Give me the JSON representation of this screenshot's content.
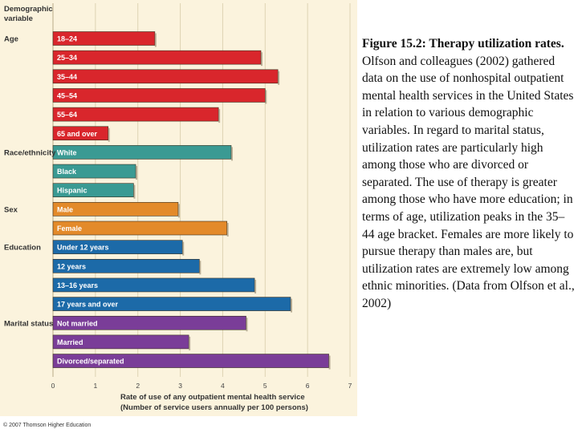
{
  "chart_data": {
    "type": "bar",
    "orientation": "horizontal",
    "group_header": "Demographic variable",
    "xlabel": "Rate of use of any outpatient mental health service",
    "xlabel_sub": "(Number of service users annually per 100 persons)",
    "xlim": [
      0,
      7
    ],
    "xticks": [
      "0",
      "1",
      "2",
      "3",
      "4",
      "5",
      "6",
      "7"
    ],
    "grid": "vertical",
    "legend": "none",
    "groups": [
      {
        "name": "Age",
        "color": "#d9262c",
        "bars": [
          {
            "label": "18–24",
            "value": 2.4
          },
          {
            "label": "25–34",
            "value": 4.9
          },
          {
            "label": "35–44",
            "value": 5.3
          },
          {
            "label": "45–54",
            "value": 5.0
          },
          {
            "label": "55–64",
            "value": 3.9
          },
          {
            "label": "65 and over",
            "value": 1.3
          }
        ]
      },
      {
        "name": "Race/ethnicity",
        "color": "#3a9a93",
        "bars": [
          {
            "label": "White",
            "value": 4.2
          },
          {
            "label": "Black",
            "value": 1.95
          },
          {
            "label": "Hispanic",
            "value": 1.9
          }
        ]
      },
      {
        "name": "Sex",
        "color": "#e38a2a",
        "bars": [
          {
            "label": "Male",
            "value": 2.95
          },
          {
            "label": "Female",
            "value": 4.1
          }
        ]
      },
      {
        "name": "Education",
        "color": "#1c6aa8",
        "bars": [
          {
            "label": "Under 12 years",
            "value": 3.05
          },
          {
            "label": "12 years",
            "value": 3.45
          },
          {
            "label": "13–16 years",
            "value": 4.75
          },
          {
            "label": "17 years and over",
            "value": 5.6
          }
        ]
      },
      {
        "name": "Marital status",
        "color": "#7a3d98",
        "bars": [
          {
            "label": "Not married",
            "value": 4.55
          },
          {
            "label": "Married",
            "value": 3.2
          },
          {
            "label": "Divorced/separated",
            "value": 6.5
          }
        ]
      }
    ]
  },
  "copyright": "© 2007 Thomson Higher Education",
  "caption": {
    "title": "Figure 15.2: Therapy utilization rates.",
    "body": "Olfson and colleagues (2002) gathered data on the use of nonhospital outpatient mental health services in the United States in relation to various demographic variables. In regard to marital status, utilization rates are particularly high among those who are divorced or separated. The use of therapy is greater among those who have more education; in terms of age, utilization peaks in the 35–44 age bracket. Females are more likely to pursue therapy than males are, but utilization rates are extremely low among ethnic minorities. (Data from Olfson et al., 2002)"
  }
}
